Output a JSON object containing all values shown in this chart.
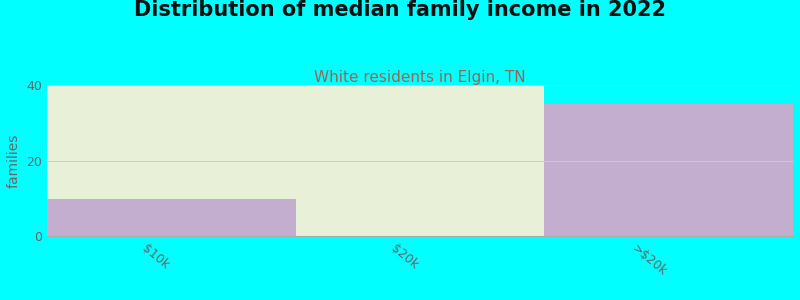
{
  "title": "Distribution of median family income in 2022",
  "subtitle": "White residents in Elgin, TN",
  "categories": [
    "$10k",
    "$20k",
    ">$20k"
  ],
  "values": [
    10,
    0,
    35
  ],
  "bar_color": "#c4aed0",
  "bg_fill_color_left": "#e8f0d8",
  "ylabel": "families",
  "ylim": [
    0,
    40
  ],
  "yticks": [
    0,
    20,
    40
  ],
  "background_color": "#00ffff",
  "title_fontsize": 15,
  "subtitle_fontsize": 11,
  "subtitle_color": "#996655",
  "title_color": "#111111",
  "grid_color": "#cccccc",
  "tick_label_color": "#666666",
  "bar_width": 1.0
}
